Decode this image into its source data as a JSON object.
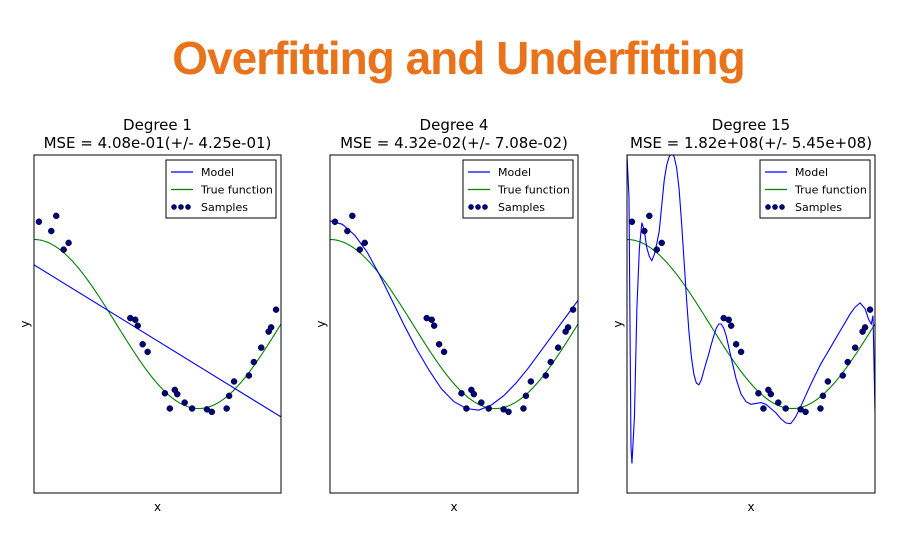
{
  "slide": {
    "title": "Overfitting and Underfitting"
  },
  "colors": {
    "title": "#e8731a",
    "model": "#0000ff",
    "true_function": "#008000",
    "samples": "#00007f"
  },
  "chart_data": [
    {
      "type": "line",
      "title": "Degree 1",
      "subtitle": "MSE = 4.08e-01(+/- 4.25e-01)",
      "xlabel": "x",
      "ylabel": "y",
      "xlim": [
        0,
        1
      ],
      "ylim": [
        -2,
        2
      ],
      "legend": {
        "placement": "top-right",
        "entries": [
          "Model",
          "True function",
          "Samples"
        ]
      },
      "series": [
        {
          "name": "Model",
          "kind": "line",
          "color": "#0000ff",
          "x": [
            0,
            1
          ],
          "y": [
            0.7,
            -1.1
          ]
        },
        {
          "name": "True function",
          "kind": "function",
          "color": "#008000",
          "formula": "cos(1.5*pi*x)"
        },
        {
          "name": "Samples",
          "kind": "scatter",
          "color": "#00007f",
          "x": [
            0.02,
            0.07,
            0.09,
            0.12,
            0.14,
            0.39,
            0.41,
            0.42,
            0.44,
            0.46,
            0.53,
            0.55,
            0.57,
            0.58,
            0.61,
            0.64,
            0.7,
            0.72,
            0.78,
            0.79,
            0.81,
            0.87,
            0.89,
            0.92,
            0.95,
            0.96,
            0.98
          ],
          "y": [
            1.21,
            1.1,
            1.28,
            0.88,
            0.96,
            0.07,
            0.05,
            -0.02,
            -0.24,
            -0.33,
            -0.82,
            -1.0,
            -0.78,
            -0.83,
            -0.93,
            -1.0,
            -1.01,
            -1.04,
            -1.0,
            -0.85,
            -0.68,
            -0.61,
            -0.45,
            -0.28,
            -0.09,
            -0.04,
            0.17
          ]
        }
      ]
    },
    {
      "type": "line",
      "title": "Degree 4",
      "subtitle": "MSE = 4.32e-02(+/- 7.08e-02)",
      "xlabel": "x",
      "ylabel": "y",
      "xlim": [
        0,
        1
      ],
      "ylim": [
        -2,
        2
      ],
      "legend": {
        "placement": "top-right",
        "entries": [
          "Model",
          "True function",
          "Samples"
        ]
      },
      "series": [
        {
          "name": "Model",
          "kind": "polyline",
          "color": "#0000ff",
          "x": [
            0.0,
            0.05,
            0.1,
            0.15,
            0.2,
            0.25,
            0.3,
            0.35,
            0.4,
            0.45,
            0.5,
            0.55,
            0.6,
            0.65,
            0.7,
            0.75,
            0.8,
            0.85,
            0.9,
            0.95,
            1.0
          ],
          "y": [
            1.22,
            1.18,
            1.05,
            0.85,
            0.58,
            0.28,
            -0.02,
            -0.3,
            -0.55,
            -0.77,
            -0.92,
            -1.0,
            -1.02,
            -0.96,
            -0.85,
            -0.7,
            -0.52,
            -0.32,
            -0.12,
            0.08,
            0.28
          ]
        },
        {
          "name": "True function",
          "kind": "function",
          "color": "#008000",
          "formula": "cos(1.5*pi*x)"
        },
        {
          "name": "Samples",
          "kind": "scatter",
          "color": "#00007f",
          "x": [
            0.02,
            0.07,
            0.09,
            0.12,
            0.14,
            0.39,
            0.41,
            0.42,
            0.44,
            0.46,
            0.53,
            0.55,
            0.57,
            0.58,
            0.61,
            0.64,
            0.7,
            0.72,
            0.78,
            0.79,
            0.81,
            0.87,
            0.89,
            0.92,
            0.95,
            0.96,
            0.98
          ],
          "y": [
            1.21,
            1.1,
            1.28,
            0.88,
            0.96,
            0.07,
            0.05,
            -0.02,
            -0.24,
            -0.33,
            -0.82,
            -1.0,
            -0.78,
            -0.83,
            -0.93,
            -1.0,
            -1.01,
            -1.04,
            -1.0,
            -0.85,
            -0.68,
            -0.61,
            -0.45,
            -0.28,
            -0.09,
            -0.04,
            0.17
          ]
        }
      ]
    },
    {
      "type": "line",
      "title": "Degree 15",
      "subtitle": "MSE = 1.82e+08(+/- 5.45e+08)",
      "xlabel": "x",
      "ylabel": "y",
      "xlim": [
        0,
        1
      ],
      "ylim": [
        -2,
        2
      ],
      "legend": {
        "placement": "top-right",
        "entries": [
          "Model",
          "True function",
          "Samples"
        ]
      },
      "series": [
        {
          "name": "Model",
          "kind": "polyline",
          "color": "#0000ff",
          "x": [
            0.0,
            0.008,
            0.016,
            0.02,
            0.03,
            0.04,
            0.05,
            0.06,
            0.07,
            0.08,
            0.09,
            0.1,
            0.11,
            0.12,
            0.13,
            0.14,
            0.15,
            0.16,
            0.17,
            0.18,
            0.19,
            0.2,
            0.21,
            0.22,
            0.23,
            0.24,
            0.25,
            0.26,
            0.27,
            0.28,
            0.29,
            0.3,
            0.31,
            0.32,
            0.33,
            0.34,
            0.35,
            0.36,
            0.37,
            0.38,
            0.39,
            0.4,
            0.42,
            0.44,
            0.46,
            0.48,
            0.5,
            0.52,
            0.54,
            0.56,
            0.58,
            0.6,
            0.62,
            0.64,
            0.66,
            0.68,
            0.7,
            0.72,
            0.74,
            0.76,
            0.78,
            0.8,
            0.82,
            0.84,
            0.86,
            0.88,
            0.9,
            0.92,
            0.94,
            0.96,
            0.975,
            0.985,
            0.992,
            1.0
          ],
          "y": [
            2.0,
            1.5,
            -1.45,
            -1.65,
            -1.1,
            0.2,
            0.9,
            1.2,
            1.1,
            0.9,
            0.8,
            0.75,
            0.82,
            0.95,
            1.1,
            1.4,
            1.7,
            1.88,
            1.98,
            2.02,
            1.98,
            1.85,
            1.6,
            1.2,
            0.75,
            0.3,
            -0.1,
            -0.4,
            -0.6,
            -0.7,
            -0.72,
            -0.66,
            -0.55,
            -0.45,
            -0.35,
            -0.24,
            -0.14,
            -0.05,
            0.0,
            0.0,
            -0.05,
            -0.14,
            -0.4,
            -0.65,
            -0.83,
            -0.92,
            -0.95,
            -0.94,
            -0.93,
            -0.95,
            -1.0,
            -1.05,
            -1.12,
            -1.17,
            -1.18,
            -1.1,
            -0.98,
            -0.85,
            -0.72,
            -0.6,
            -0.48,
            -0.38,
            -0.28,
            -0.18,
            -0.08,
            0.02,
            0.12,
            0.2,
            0.25,
            0.18,
            0.05,
            0.0,
            0.1,
            -1.05
          ]
        },
        {
          "name": "True function",
          "kind": "function",
          "color": "#008000",
          "formula": "cos(1.5*pi*x)"
        },
        {
          "name": "Samples",
          "kind": "scatter",
          "color": "#00007f",
          "x": [
            0.02,
            0.07,
            0.09,
            0.12,
            0.14,
            0.39,
            0.41,
            0.42,
            0.44,
            0.46,
            0.53,
            0.55,
            0.57,
            0.58,
            0.61,
            0.64,
            0.7,
            0.72,
            0.78,
            0.79,
            0.81,
            0.87,
            0.89,
            0.92,
            0.95,
            0.96,
            0.98
          ],
          "y": [
            1.21,
            1.1,
            1.28,
            0.88,
            0.96,
            0.07,
            0.05,
            -0.02,
            -0.24,
            -0.33,
            -0.82,
            -1.0,
            -0.78,
            -0.83,
            -0.93,
            -1.0,
            -1.01,
            -1.04,
            -1.0,
            -0.85,
            -0.68,
            -0.61,
            -0.45,
            -0.28,
            -0.09,
            -0.04,
            0.17
          ]
        }
      ]
    }
  ]
}
